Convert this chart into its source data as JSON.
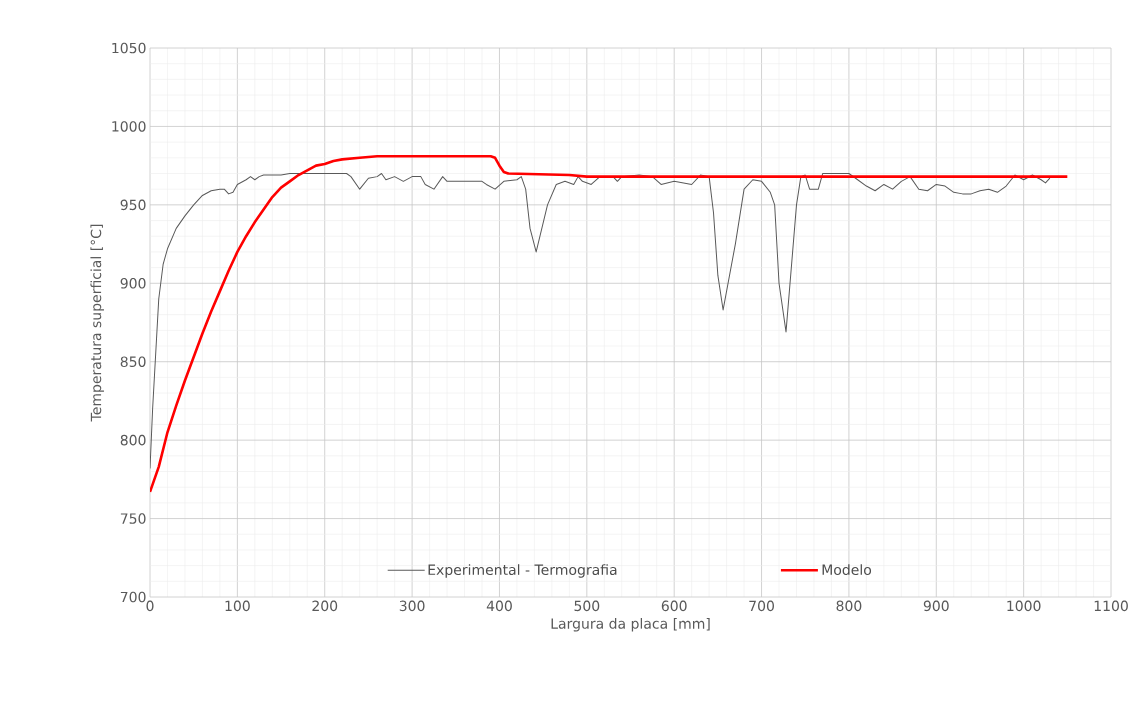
{
  "chart_data": {
    "type": "line",
    "xlabel": "Largura da placa [mm]",
    "ylabel": "Temperatura superficial [°C]",
    "xlim": [
      0,
      1100
    ],
    "xticks": [
      0,
      100,
      200,
      300,
      400,
      500,
      600,
      700,
      800,
      900,
      1000,
      1100
    ],
    "ylim": [
      700,
      1050
    ],
    "yticks": [
      700,
      750,
      800,
      850,
      900,
      950,
      1000,
      1050
    ],
    "grid": true,
    "legend": "bottom",
    "marker": "none",
    "line_style": "solid",
    "series": [
      {
        "name": "Experimental - Termografia",
        "color": "#595959",
        "x": [
          0,
          3,
          7,
          10,
          15,
          20,
          30,
          40,
          50,
          60,
          70,
          80,
          85,
          90,
          95,
          100,
          110,
          115,
          120,
          125,
          130,
          150,
          160,
          225,
          230,
          240,
          250,
          260,
          265,
          270,
          280,
          290,
          300,
          310,
          315,
          325,
          335,
          340,
          380,
          385,
          395,
          405,
          420,
          425,
          430,
          435,
          442,
          455,
          465,
          475,
          485,
          490,
          495,
          505,
          515,
          530,
          535,
          540,
          560,
          575,
          585,
          600,
          620,
          630,
          640,
          645,
          650,
          656,
          670,
          680,
          690,
          700,
          710,
          715,
          720,
          728,
          740,
          745,
          750,
          755,
          765,
          770,
          800,
          810,
          820,
          830,
          840,
          850,
          860,
          870,
          880,
          890,
          900,
          910,
          920,
          930,
          940,
          950,
          960,
          970,
          980,
          990,
          1000,
          1010,
          1020,
          1025,
          1030
        ],
        "values": [
          782,
          820,
          860,
          890,
          912,
          922,
          935,
          943,
          950,
          956,
          959,
          960,
          960,
          957,
          958,
          963,
          966,
          968,
          966,
          968,
          969,
          969,
          970,
          970,
          968,
          960,
          967,
          968,
          970,
          966,
          968,
          965,
          968,
          968,
          963,
          960,
          968,
          965,
          965,
          963,
          960,
          965,
          966,
          968,
          960,
          935,
          920,
          950,
          963,
          965,
          963,
          968,
          965,
          963,
          968,
          968,
          965,
          968,
          969,
          968,
          963,
          965,
          963,
          969,
          968,
          945,
          905,
          883,
          925,
          960,
          966,
          965,
          958,
          950,
          900,
          869,
          950,
          968,
          969,
          960,
          960,
          970,
          970,
          966,
          962,
          959,
          963,
          960,
          965,
          968,
          960,
          959,
          963,
          962,
          958,
          957,
          957,
          959,
          960,
          958,
          962,
          969,
          966,
          969,
          966,
          964,
          967
        ]
      },
      {
        "name": "Modelo",
        "color": "#ff0000",
        "x": [
          0,
          10,
          20,
          30,
          40,
          50,
          60,
          70,
          80,
          90,
          100,
          110,
          120,
          130,
          140,
          150,
          160,
          170,
          180,
          190,
          200,
          210,
          220,
          240,
          260,
          300,
          380,
          390,
          395,
          400,
          405,
          410,
          480,
          500,
          1050
        ],
        "values": [
          767,
          783,
          805,
          822,
          838,
          853,
          868,
          882,
          895,
          908,
          920,
          930,
          939,
          947,
          955,
          961,
          965,
          969,
          972,
          975,
          976,
          978,
          979,
          980,
          981,
          981,
          981,
          981,
          980,
          975,
          971,
          970,
          969,
          968,
          968
        ]
      }
    ]
  }
}
